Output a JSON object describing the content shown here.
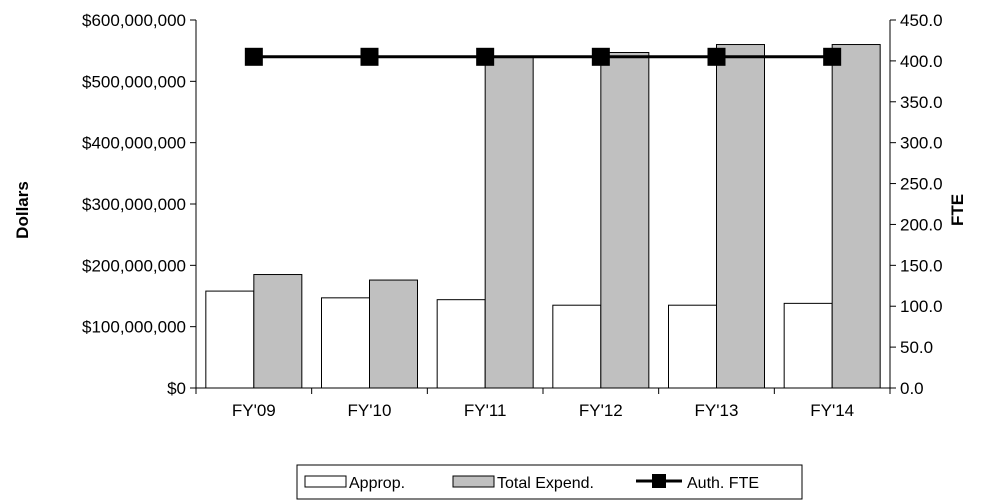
{
  "chart_data": {
    "type": "bar",
    "categories": [
      "FY'09",
      "FY'10",
      "FY'11",
      "FY'12",
      "FY'13",
      "FY'14"
    ],
    "series": [
      {
        "name": "Approp.",
        "type": "bar",
        "axis": "left",
        "color": "#ffffff",
        "values": [
          158000000,
          147000000,
          144000000,
          135000000,
          135000000,
          138000000
        ]
      },
      {
        "name": "Total Expend.",
        "type": "bar",
        "axis": "left",
        "color": "#c0c0c0",
        "values": [
          185000000,
          176000000,
          540000000,
          547000000,
          560000000,
          560000000
        ]
      },
      {
        "name": "Auth. FTE",
        "type": "line",
        "axis": "right",
        "color": "#000000",
        "values": [
          405,
          405,
          405,
          405,
          405,
          405
        ]
      }
    ],
    "ylabel": "Dollars",
    "y2label": "FTE",
    "ylim": [
      0,
      600000000
    ],
    "y2lim": [
      0,
      450
    ],
    "y_ticks": [
      "$0",
      "$100,000,000",
      "$200,000,000",
      "$300,000,000",
      "$400,000,000",
      "$500,000,000",
      "$600,000,000"
    ],
    "y2_ticks": [
      "0.0",
      "50.0",
      "100.0",
      "150.0",
      "200.0",
      "250.0",
      "300.0",
      "350.0",
      "400.0",
      "450.0"
    ],
    "grid": false,
    "legend_position": "bottom"
  }
}
